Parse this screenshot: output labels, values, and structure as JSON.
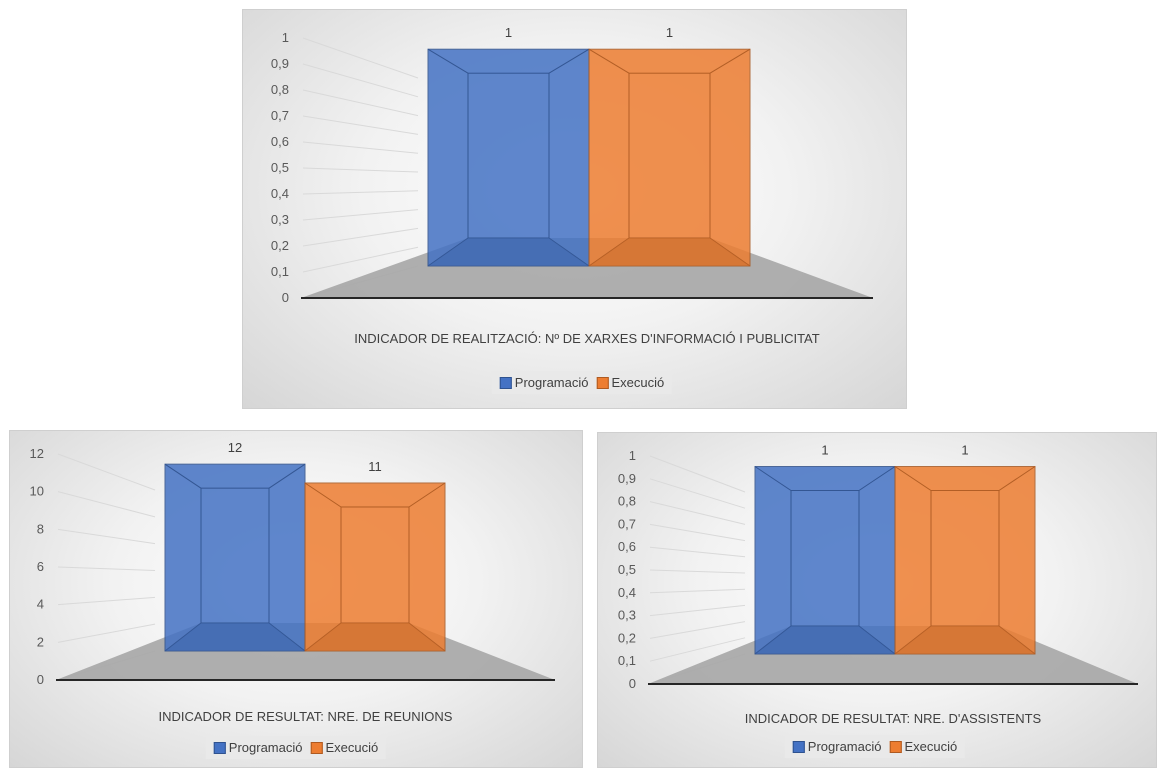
{
  "colors": {
    "programacio": "#4472c4",
    "execucio": "#ed7d31",
    "floor": "#a6a6a6",
    "grid": "#d9d9d9",
    "axis": "#262626"
  },
  "chart_data": [
    {
      "type": "bar",
      "categories": [
        "INDICADOR DE REALITZACIÓ: Nº DE XARXES D'INFORMACIÓ I PUBLICITAT"
      ],
      "series": [
        {
          "name": "Programació",
          "values": [
            1
          ]
        },
        {
          "name": "Execució",
          "values": [
            1
          ]
        }
      ],
      "ylim": [
        0,
        1
      ],
      "yticks": [
        "0",
        "0,1",
        "0,2",
        "0,3",
        "0,4",
        "0,5",
        "0,6",
        "0,7",
        "0,8",
        "0,9",
        "1"
      ],
      "data_labels": [
        "1",
        "1"
      ],
      "legend_position": "bottom",
      "grid": true,
      "three_d": true
    },
    {
      "type": "bar",
      "categories": [
        "INDICADOR DE RESULTAT: NRE. DE REUNIONS"
      ],
      "series": [
        {
          "name": "Programació",
          "values": [
            12
          ]
        },
        {
          "name": "Execució",
          "values": [
            11
          ]
        }
      ],
      "ylim": [
        0,
        12
      ],
      "yticks": [
        "0",
        "2",
        "4",
        "6",
        "8",
        "10",
        "12"
      ],
      "data_labels": [
        "12",
        "11"
      ],
      "legend_position": "bottom",
      "grid": true,
      "three_d": true
    },
    {
      "type": "bar",
      "categories": [
        "INDICADOR DE RESULTAT: NRE. D'ASSISTENTS"
      ],
      "series": [
        {
          "name": "Programació",
          "values": [
            1
          ]
        },
        {
          "name": "Execució",
          "values": [
            1
          ]
        }
      ],
      "ylim": [
        0,
        1
      ],
      "yticks": [
        "0",
        "0,1",
        "0,2",
        "0,3",
        "0,4",
        "0,5",
        "0,6",
        "0,7",
        "0,8",
        "0,9",
        "1"
      ],
      "data_labels": [
        "1",
        "1"
      ],
      "legend_position": "bottom",
      "grid": true,
      "three_d": true
    }
  ]
}
